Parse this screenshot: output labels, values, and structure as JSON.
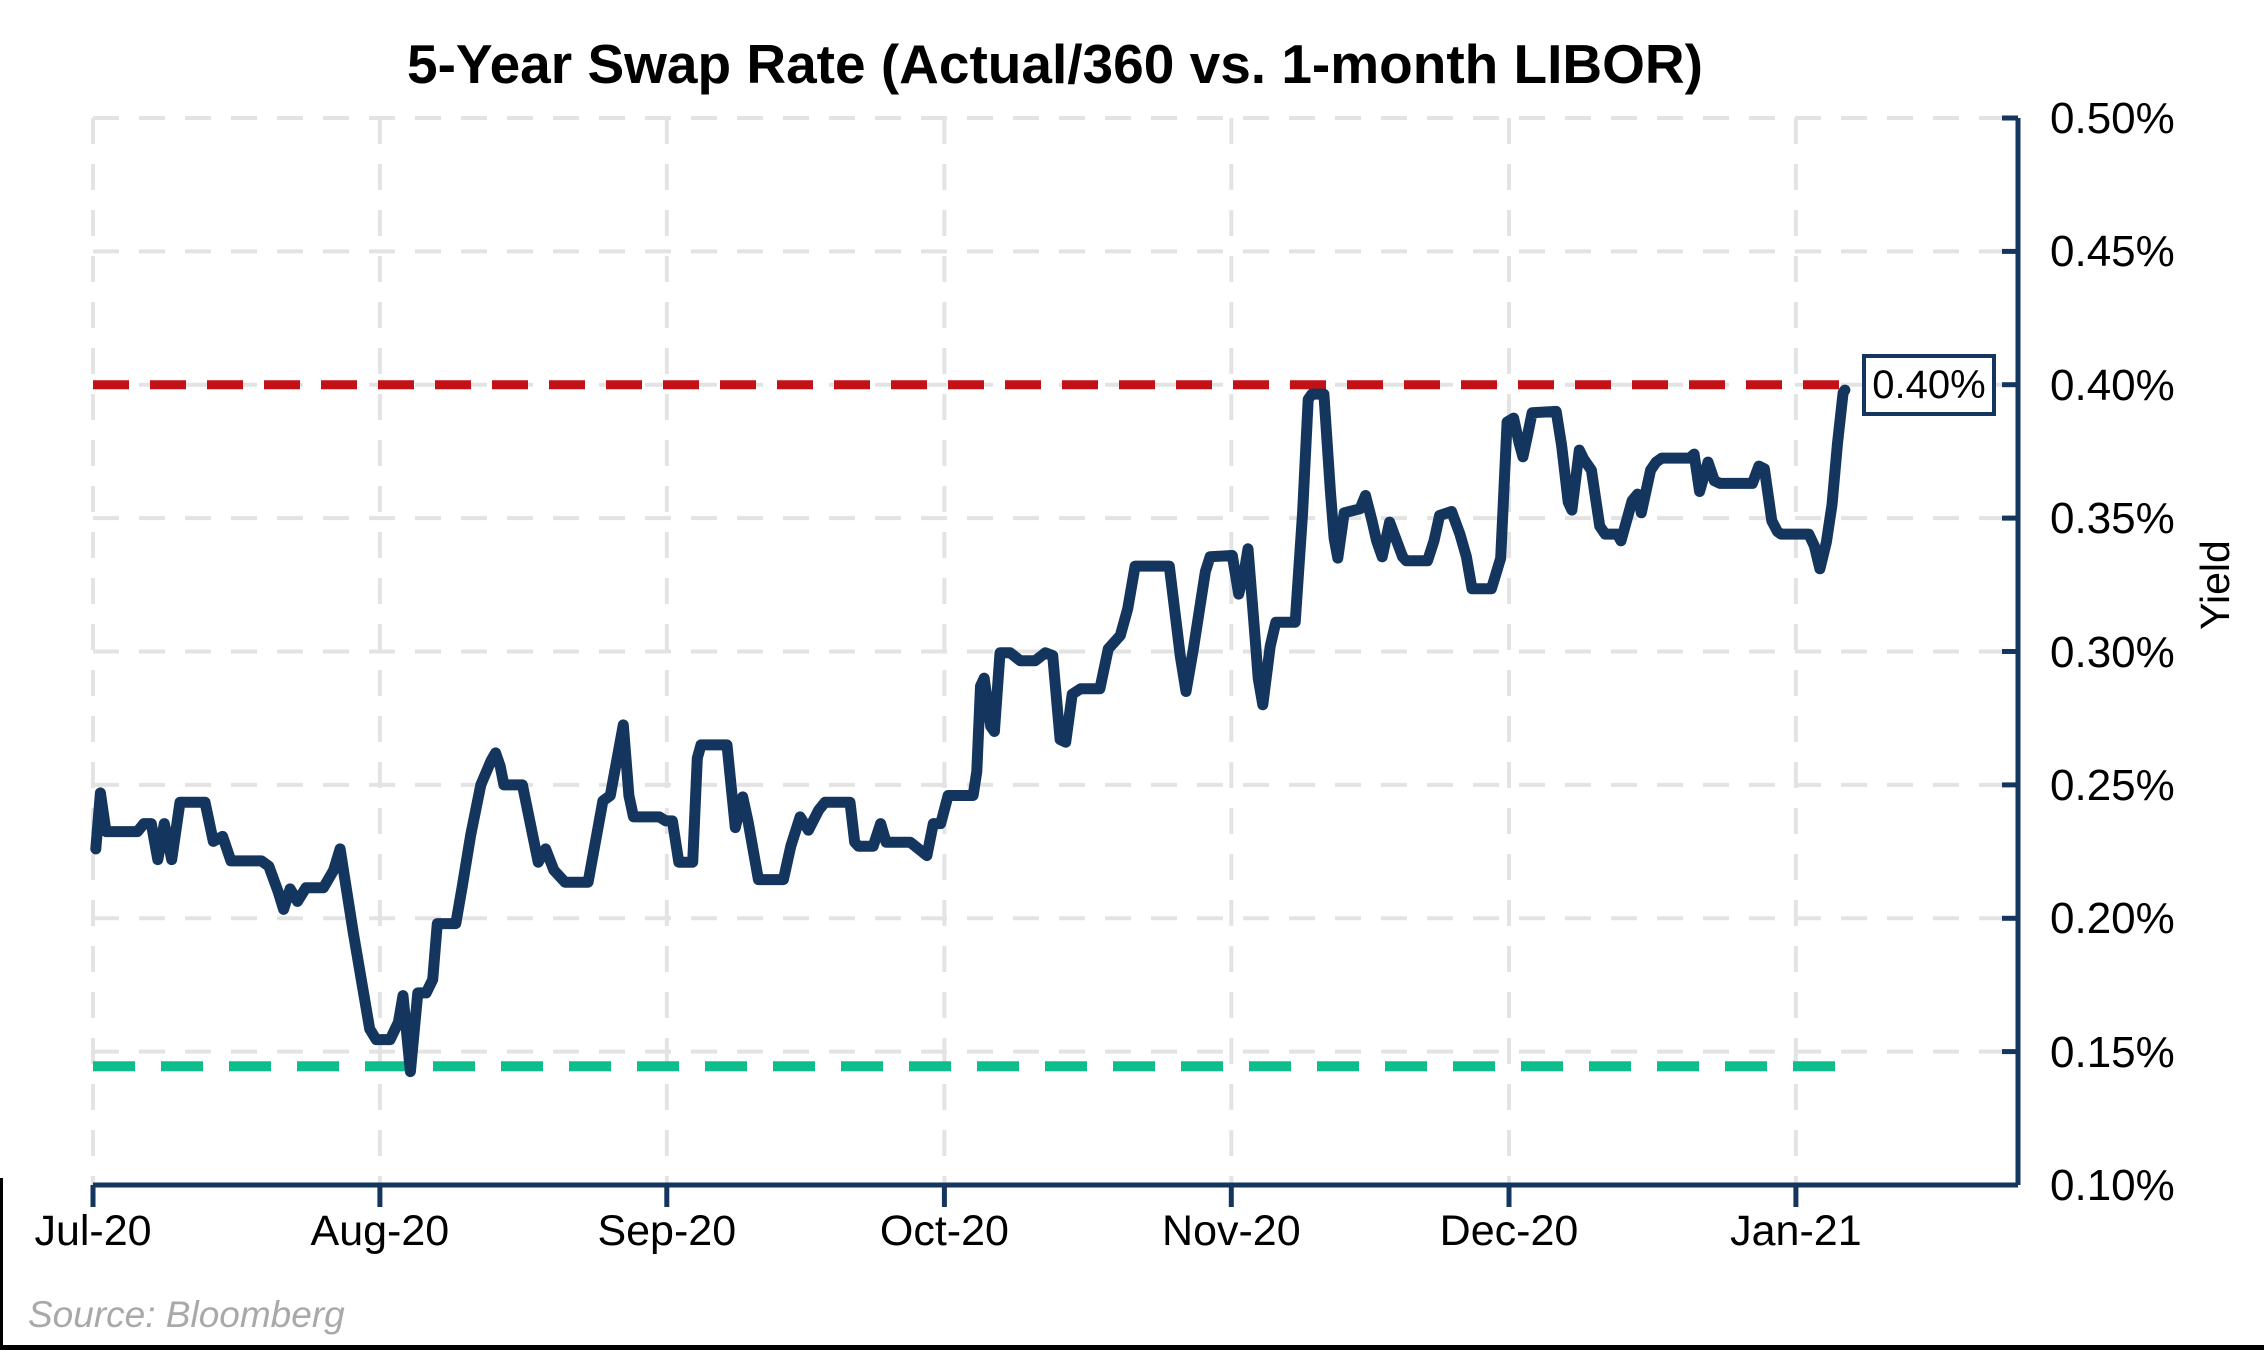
{
  "title": "5-Year Swap Rate (Actual/360 vs. 1-month LIBOR)",
  "source_note": "Source: Bloomberg",
  "annotation": {
    "label": "0.40%"
  },
  "colors": {
    "series_navy": "#14365E",
    "reference_red": "#C41118",
    "reference_green": "#0EBD8C",
    "gridline_grey": "#E3E3E3",
    "source_grey": "#A9A9A9"
  },
  "chart_data": {
    "type": "line",
    "title": "5-Year Swap Rate (Actual/360 vs. 1-month LIBOR)",
    "x_axis": {
      "tick_labels": [
        "Jul-20",
        "Aug-20",
        "Sep-20",
        "Oct-20",
        "Nov-20",
        "Dec-20",
        "Jan-21"
      ],
      "tick_days": [
        0,
        31,
        62,
        92,
        123,
        153,
        184
      ],
      "domain_days": [
        0,
        208
      ],
      "grid": true
    },
    "y_axis": {
      "label": "Yield",
      "unit": "%",
      "min": 0.1,
      "max": 0.5,
      "step": 0.05,
      "tick_labels": [
        "0.50%",
        "0.45%",
        "0.40%",
        "0.35%",
        "0.30%",
        "0.25%",
        "0.20%",
        "0.15%",
        "0.10%"
      ],
      "grid": true
    },
    "legend": false,
    "series": [
      {
        "name": "5-Year Swap Rate (Actual/360)",
        "color": "#14365E",
        "points": [
          [
            0.3,
            0.226
          ],
          [
            0.8,
            0.247
          ],
          [
            1.4,
            0.2325
          ],
          [
            4.8,
            0.2325
          ],
          [
            5.5,
            0.2355
          ],
          [
            6.3,
            0.2355
          ],
          [
            7.0,
            0.222
          ],
          [
            7.7,
            0.2355
          ],
          [
            8.5,
            0.222
          ],
          [
            9.4,
            0.2435
          ],
          [
            12.1,
            0.2435
          ],
          [
            13.0,
            0.2288
          ],
          [
            14.0,
            0.2307
          ],
          [
            14.9,
            0.2215
          ],
          [
            18.2,
            0.2215
          ],
          [
            19.0,
            0.2195
          ],
          [
            20.0,
            0.21
          ],
          [
            20.6,
            0.2033
          ],
          [
            21.3,
            0.211
          ],
          [
            22.1,
            0.2063
          ],
          [
            23.0,
            0.2114
          ],
          [
            24.9,
            0.2114
          ],
          [
            26.0,
            0.218
          ],
          [
            26.7,
            0.226
          ],
          [
            28.1,
            0.195
          ],
          [
            29.9,
            0.1585
          ],
          [
            30.6,
            0.1545
          ],
          [
            32.1,
            0.1545
          ],
          [
            33.0,
            0.161
          ],
          [
            33.5,
            0.171
          ],
          [
            34.3,
            0.1425
          ],
          [
            35.1,
            0.172
          ],
          [
            36.0,
            0.172
          ],
          [
            36.7,
            0.177
          ],
          [
            37.2,
            0.198
          ],
          [
            39.2,
            0.198
          ],
          [
            39.9,
            0.212
          ],
          [
            40.8,
            0.231
          ],
          [
            41.9,
            0.25
          ],
          [
            43.0,
            0.259
          ],
          [
            43.5,
            0.262
          ],
          [
            44.0,
            0.257
          ],
          [
            44.4,
            0.25
          ],
          [
            46.4,
            0.25
          ],
          [
            48.1,
            0.221
          ],
          [
            48.9,
            0.226
          ],
          [
            49.8,
            0.218
          ],
          [
            51.0,
            0.2135
          ],
          [
            53.5,
            0.2135
          ],
          [
            55.1,
            0.244
          ],
          [
            55.9,
            0.246
          ],
          [
            57.3,
            0.2725
          ],
          [
            57.9,
            0.246
          ],
          [
            58.4,
            0.238
          ],
          [
            61.2,
            0.238
          ],
          [
            61.9,
            0.2365
          ],
          [
            62.6,
            0.2365
          ],
          [
            63.3,
            0.221
          ],
          [
            64.8,
            0.221
          ],
          [
            65.3,
            0.26
          ],
          [
            65.7,
            0.265
          ],
          [
            68.5,
            0.265
          ],
          [
            69.4,
            0.234
          ],
          [
            70.2,
            0.2455
          ],
          [
            70.8,
            0.236
          ],
          [
            71.9,
            0.2145
          ],
          [
            74.6,
            0.2145
          ],
          [
            75.4,
            0.227
          ],
          [
            76.4,
            0.238
          ],
          [
            77.3,
            0.233
          ],
          [
            78.4,
            0.2405
          ],
          [
            79.1,
            0.2435
          ],
          [
            81.8,
            0.2435
          ],
          [
            82.3,
            0.2285
          ],
          [
            82.7,
            0.227
          ],
          [
            84.3,
            0.227
          ],
          [
            85.1,
            0.2355
          ],
          [
            85.7,
            0.2285
          ],
          [
            88.3,
            0.2285
          ],
          [
            90.1,
            0.2235
          ],
          [
            90.8,
            0.2355
          ],
          [
            91.6,
            0.2355
          ],
          [
            92.4,
            0.246
          ],
          [
            95.1,
            0.246
          ],
          [
            95.5,
            0.255
          ],
          [
            95.9,
            0.287
          ],
          [
            96.3,
            0.29
          ],
          [
            97.0,
            0.272
          ],
          [
            97.4,
            0.27
          ],
          [
            98.0,
            0.2995
          ],
          [
            99.1,
            0.2995
          ],
          [
            100.2,
            0.2965
          ],
          [
            101.8,
            0.2965
          ],
          [
            102.9,
            0.2995
          ],
          [
            103.7,
            0.2985
          ],
          [
            104.5,
            0.267
          ],
          [
            105.1,
            0.266
          ],
          [
            105.8,
            0.284
          ],
          [
            106.7,
            0.286
          ],
          [
            108.8,
            0.286
          ],
          [
            109.7,
            0.301
          ],
          [
            111.0,
            0.306
          ],
          [
            111.8,
            0.316
          ],
          [
            112.6,
            0.332
          ],
          [
            116.3,
            0.332
          ],
          [
            117.5,
            0.298
          ],
          [
            118.1,
            0.285
          ],
          [
            118.9,
            0.301
          ],
          [
            120.2,
            0.33
          ],
          [
            120.7,
            0.3355
          ],
          [
            123.1,
            0.336
          ],
          [
            123.8,
            0.3215
          ],
          [
            124.4,
            0.33
          ],
          [
            124.8,
            0.3385
          ],
          [
            125.5,
            0.308
          ],
          [
            125.9,
            0.29
          ],
          [
            126.4,
            0.28
          ],
          [
            127.2,
            0.302
          ],
          [
            127.8,
            0.311
          ],
          [
            129.9,
            0.311
          ],
          [
            130.7,
            0.352
          ],
          [
            131.3,
            0.3945
          ],
          [
            131.7,
            0.3965
          ],
          [
            133.0,
            0.3965
          ],
          [
            133.7,
            0.36
          ],
          [
            134.1,
            0.3425
          ],
          [
            134.5,
            0.335
          ],
          [
            135.2,
            0.352
          ],
          [
            136.9,
            0.3535
          ],
          [
            137.5,
            0.3585
          ],
          [
            138.2,
            0.349
          ],
          [
            138.7,
            0.3415
          ],
          [
            139.3,
            0.3355
          ],
          [
            140.1,
            0.3485
          ],
          [
            140.8,
            0.342
          ],
          [
            141.5,
            0.3355
          ],
          [
            141.9,
            0.334
          ],
          [
            144.2,
            0.334
          ],
          [
            144.9,
            0.3415
          ],
          [
            145.5,
            0.351
          ],
          [
            146.8,
            0.3525
          ],
          [
            147.7,
            0.344
          ],
          [
            148.4,
            0.3355
          ],
          [
            149.0,
            0.3235
          ],
          [
            151.1,
            0.3235
          ],
          [
            152.1,
            0.335
          ],
          [
            152.8,
            0.386
          ],
          [
            153.5,
            0.3875
          ],
          [
            154.1,
            0.378
          ],
          [
            154.5,
            0.373
          ],
          [
            155.0,
            0.381
          ],
          [
            155.5,
            0.3895
          ],
          [
            158.1,
            0.39
          ],
          [
            158.7,
            0.377
          ],
          [
            159.4,
            0.356
          ],
          [
            159.8,
            0.353
          ],
          [
            160.6,
            0.3755
          ],
          [
            161.1,
            0.372
          ],
          [
            161.9,
            0.368
          ],
          [
            162.8,
            0.347
          ],
          [
            163.4,
            0.344
          ],
          [
            164.7,
            0.344
          ],
          [
            165.1,
            0.3415
          ],
          [
            166.3,
            0.3565
          ],
          [
            166.9,
            0.359
          ],
          [
            167.3,
            0.352
          ],
          [
            168.3,
            0.368
          ],
          [
            168.9,
            0.371
          ],
          [
            169.5,
            0.3725
          ],
          [
            172.5,
            0.3725
          ],
          [
            173.0,
            0.374
          ],
          [
            173.6,
            0.36
          ],
          [
            174.5,
            0.371
          ],
          [
            175.2,
            0.364
          ],
          [
            175.8,
            0.363
          ],
          [
            179.3,
            0.363
          ],
          [
            180.0,
            0.3695
          ],
          [
            180.6,
            0.3685
          ],
          [
            181.4,
            0.349
          ],
          [
            182.0,
            0.345
          ],
          [
            182.4,
            0.344
          ],
          [
            185.4,
            0.344
          ],
          [
            186.0,
            0.3395
          ],
          [
            186.6,
            0.331
          ],
          [
            187.3,
            0.341
          ],
          [
            187.9,
            0.355
          ],
          [
            188.5,
            0.378
          ],
          [
            189.1,
            0.397
          ],
          [
            189.3,
            0.398
          ]
        ]
      }
    ],
    "reference_lines": [
      {
        "label": "0.40%",
        "value": 0.4,
        "color": "#C41118",
        "style": "dashed",
        "span_days": [
          0,
          189.5
        ]
      },
      {
        "label": "",
        "value": 0.1445,
        "color": "#0EBD8C",
        "style": "dashed",
        "span_days": [
          0,
          189.5
        ]
      }
    ]
  }
}
